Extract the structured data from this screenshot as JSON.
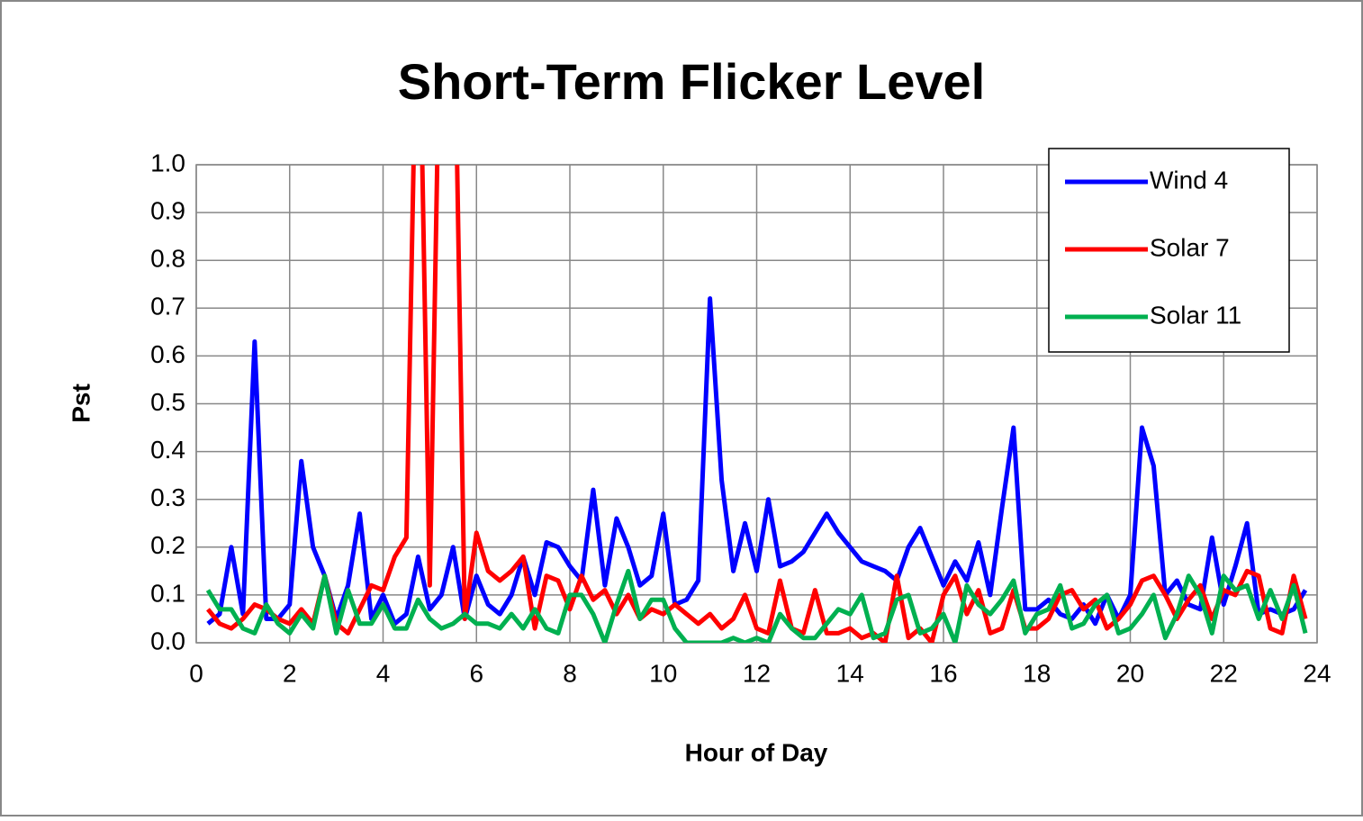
{
  "chart_data": {
    "type": "line",
    "title": "Short-Term Flicker Level",
    "xlabel": "Hour of Day",
    "ylabel": "Pst",
    "x": [
      0.25,
      0.5,
      0.75,
      1,
      1.25,
      1.5,
      1.75,
      2,
      2.25,
      2.5,
      2.75,
      3,
      3.25,
      3.5,
      3.75,
      4,
      4.25,
      4.5,
      4.75,
      5,
      5.25,
      5.5,
      5.75,
      6,
      6.25,
      6.5,
      6.75,
      7,
      7.25,
      7.5,
      7.75,
      8,
      8.25,
      8.5,
      8.75,
      9,
      9.25,
      9.5,
      9.75,
      10,
      10.25,
      10.5,
      10.75,
      11,
      11.25,
      11.5,
      11.75,
      12,
      12.25,
      12.5,
      12.75,
      13,
      13.25,
      13.5,
      13.75,
      14,
      14.25,
      14.5,
      14.75,
      15,
      15.25,
      15.5,
      15.75,
      16,
      16.25,
      16.5,
      16.75,
      17,
      17.25,
      17.5,
      17.75,
      18,
      18.25,
      18.5,
      18.75,
      19,
      19.25,
      19.5,
      19.75,
      20,
      20.25,
      20.5,
      20.75,
      21,
      21.25,
      21.5,
      21.75,
      22,
      22.25,
      22.5,
      22.75,
      23,
      23.25,
      23.5,
      23.75
    ],
    "series": [
      {
        "name": "Wind 4",
        "color": "#0000ff",
        "values": [
          0.04,
          0.06,
          0.2,
          0.06,
          0.63,
          0.05,
          0.05,
          0.08,
          0.38,
          0.2,
          0.14,
          0.05,
          0.12,
          0.27,
          0.05,
          0.1,
          0.04,
          0.06,
          0.18,
          0.07,
          0.1,
          0.2,
          0.05,
          0.14,
          0.08,
          0.06,
          0.1,
          0.18,
          0.1,
          0.21,
          0.2,
          0.16,
          0.13,
          0.32,
          0.12,
          0.26,
          0.2,
          0.12,
          0.14,
          0.27,
          0.08,
          0.09,
          0.13,
          0.72,
          0.34,
          0.15,
          0.25,
          0.15,
          0.3,
          0.16,
          0.17,
          0.19,
          0.23,
          0.27,
          0.23,
          0.2,
          0.17,
          0.16,
          0.15,
          0.13,
          0.2,
          0.24,
          0.18,
          0.12,
          0.17,
          0.13,
          0.21,
          0.1,
          0.28,
          0.45,
          0.07,
          0.07,
          0.09,
          0.06,
          0.05,
          0.08,
          0.04,
          0.1,
          0.05,
          0.1,
          0.45,
          0.37,
          0.1,
          0.13,
          0.08,
          0.07,
          0.22,
          0.08,
          0.16,
          0.25,
          0.06,
          0.07,
          0.06,
          0.07,
          0.11
        ]
      },
      {
        "name": "Solar 7",
        "color": "#ff0000",
        "values": [
          0.07,
          0.04,
          0.03,
          0.05,
          0.08,
          0.07,
          0.05,
          0.04,
          0.07,
          0.04,
          0.14,
          0.04,
          0.02,
          0.07,
          0.12,
          0.11,
          0.18,
          0.22,
          1.5,
          0.12,
          1.5,
          1.5,
          0.05,
          0.23,
          0.15,
          0.13,
          0.15,
          0.18,
          0.03,
          0.14,
          0.13,
          0.07,
          0.14,
          0.09,
          0.11,
          0.06,
          0.1,
          0.05,
          0.07,
          0.06,
          0.08,
          0.06,
          0.04,
          0.06,
          0.03,
          0.05,
          0.1,
          0.03,
          0.02,
          0.13,
          0.03,
          0.02,
          0.11,
          0.02,
          0.02,
          0.03,
          0.01,
          0.02,
          0,
          0.14,
          0.01,
          0.03,
          0,
          0.1,
          0.14,
          0.06,
          0.11,
          0.02,
          0.03,
          0.11,
          0.03,
          0.03,
          0.05,
          0.1,
          0.11,
          0.07,
          0.09,
          0.03,
          0.05,
          0.08,
          0.13,
          0.14,
          0.1,
          0.05,
          0.09,
          0.12,
          0.05,
          0.11,
          0.1,
          0.15,
          0.14,
          0.03,
          0.02,
          0.14,
          0.05
        ]
      },
      {
        "name": "Solar 11",
        "color": "#00b050",
        "values": [
          0.11,
          0.07,
          0.07,
          0.03,
          0.02,
          0.08,
          0.04,
          0.02,
          0.06,
          0.03,
          0.14,
          0.02,
          0.11,
          0.04,
          0.04,
          0.08,
          0.03,
          0.03,
          0.09,
          0.05,
          0.03,
          0.04,
          0.06,
          0.04,
          0.04,
          0.03,
          0.06,
          0.03,
          0.07,
          0.03,
          0.02,
          0.1,
          0.1,
          0.06,
          0,
          0.08,
          0.15,
          0.05,
          0.09,
          0.09,
          0.03,
          0,
          0,
          0,
          0,
          0.01,
          0,
          0.01,
          0,
          0.06,
          0.03,
          0.01,
          0.01,
          0.04,
          0.07,
          0.06,
          0.1,
          0.01,
          0.02,
          0.09,
          0.1,
          0.02,
          0.03,
          0.06,
          0,
          0.12,
          0.08,
          0.06,
          0.09,
          0.13,
          0.02,
          0.06,
          0.07,
          0.12,
          0.03,
          0.04,
          0.08,
          0.1,
          0.02,
          0.03,
          0.06,
          0.1,
          0.01,
          0.06,
          0.14,
          0.1,
          0.02,
          0.14,
          0.11,
          0.12,
          0.05,
          0.11,
          0.05,
          0.12,
          0.02
        ]
      }
    ],
    "xlim": [
      0,
      24
    ],
    "xticks": [
      0,
      2,
      4,
      6,
      8,
      10,
      12,
      14,
      16,
      18,
      20,
      22,
      24
    ],
    "ylim": [
      0,
      1
    ],
    "yticks": [
      {
        "value": 0,
        "label": "0.0"
      },
      0.1,
      0.2,
      0.3,
      0.4,
      0.5,
      0.6,
      0.7,
      0.8,
      0.9,
      {
        "value": 1,
        "label": "1.0"
      }
    ],
    "grid": true,
    "legend": "upper right"
  }
}
